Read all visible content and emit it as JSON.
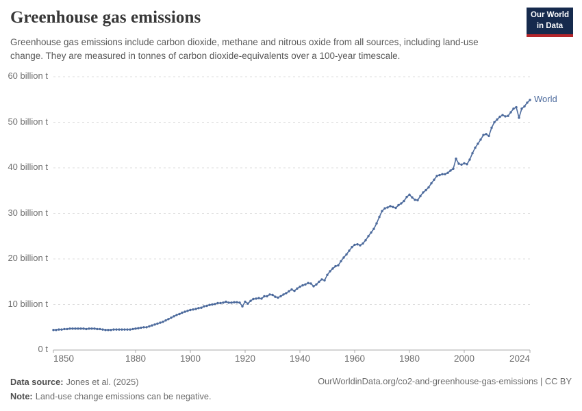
{
  "header": {
    "title": "Greenhouse gas emissions",
    "subtitle": "Greenhouse gas emissions include carbon dioxide, methane and nitrous oxide from all sources, including land-use change. They are measured in tonnes of carbon dioxide-equivalents over a 100-year timescale.",
    "logo_line1": "Our World",
    "logo_line2": "in Data",
    "logo_bg_color": "#162a4d",
    "logo_accent_color": "#b5252a"
  },
  "chart_data": {
    "type": "line",
    "title": "Greenhouse gas emissions",
    "series_label": "World",
    "unit": "billion t",
    "line_color": "#4C6A9C",
    "grid": true,
    "legend_position": "end-of-line",
    "xlim": [
      1850,
      2024
    ],
    "ylim": [
      0,
      60
    ],
    "x_ticks": [
      1850,
      1880,
      1900,
      1920,
      1940,
      1960,
      1980,
      2000,
      2024
    ],
    "y_ticks": [
      {
        "value": 0,
        "label": "0 t"
      },
      {
        "value": 10,
        "label": "10 billion t"
      },
      {
        "value": 20,
        "label": "20 billion t"
      },
      {
        "value": 30,
        "label": "30 billion t"
      },
      {
        "value": 40,
        "label": "40 billion t"
      },
      {
        "value": 50,
        "label": "50 billion t"
      },
      {
        "value": 60,
        "label": "60 billion t"
      }
    ],
    "x": [
      1850,
      1851,
      1852,
      1853,
      1854,
      1855,
      1856,
      1857,
      1858,
      1859,
      1860,
      1861,
      1862,
      1863,
      1864,
      1865,
      1866,
      1867,
      1868,
      1869,
      1870,
      1871,
      1872,
      1873,
      1874,
      1875,
      1876,
      1877,
      1878,
      1879,
      1880,
      1881,
      1882,
      1883,
      1884,
      1885,
      1886,
      1887,
      1888,
      1889,
      1890,
      1891,
      1892,
      1893,
      1894,
      1895,
      1896,
      1897,
      1898,
      1899,
      1900,
      1901,
      1902,
      1903,
      1904,
      1905,
      1906,
      1907,
      1908,
      1909,
      1910,
      1911,
      1912,
      1913,
      1914,
      1915,
      1916,
      1917,
      1918,
      1919,
      1920,
      1921,
      1922,
      1923,
      1924,
      1925,
      1926,
      1927,
      1928,
      1929,
      1930,
      1931,
      1932,
      1933,
      1934,
      1935,
      1936,
      1937,
      1938,
      1939,
      1940,
      1941,
      1942,
      1943,
      1944,
      1945,
      1946,
      1947,
      1948,
      1949,
      1950,
      1951,
      1952,
      1953,
      1954,
      1955,
      1956,
      1957,
      1958,
      1959,
      1960,
      1961,
      1962,
      1963,
      1964,
      1965,
      1966,
      1967,
      1968,
      1969,
      1970,
      1971,
      1972,
      1973,
      1974,
      1975,
      1976,
      1977,
      1978,
      1979,
      1980,
      1981,
      1982,
      1983,
      1984,
      1985,
      1986,
      1987,
      1988,
      1989,
      1990,
      1991,
      1992,
      1993,
      1994,
      1995,
      1996,
      1997,
      1998,
      1999,
      2000,
      2001,
      2002,
      2003,
      2004,
      2005,
      2006,
      2007,
      2008,
      2009,
      2010,
      2011,
      2012,
      2013,
      2014,
      2015,
      2016,
      2017,
      2018,
      2019,
      2020,
      2021,
      2022,
      2023,
      2024
    ],
    "values": [
      4.4,
      4.4,
      4.5,
      4.5,
      4.6,
      4.6,
      4.7,
      4.7,
      4.7,
      4.7,
      4.7,
      4.7,
      4.6,
      4.7,
      4.7,
      4.7,
      4.6,
      4.6,
      4.5,
      4.4,
      4.4,
      4.4,
      4.5,
      4.5,
      4.5,
      4.5,
      4.5,
      4.5,
      4.5,
      4.6,
      4.7,
      4.8,
      4.9,
      5.0,
      5.0,
      5.2,
      5.4,
      5.6,
      5.8,
      6.0,
      6.2,
      6.5,
      6.8,
      7.1,
      7.4,
      7.7,
      7.9,
      8.2,
      8.4,
      8.6,
      8.8,
      8.9,
      9.0,
      9.2,
      9.3,
      9.6,
      9.7,
      9.9,
      10.0,
      10.1,
      10.3,
      10.3,
      10.4,
      10.6,
      10.4,
      10.4,
      10.5,
      10.5,
      10.4,
      9.6,
      10.6,
      10.2,
      10.8,
      11.2,
      11.3,
      11.4,
      11.3,
      11.8,
      11.8,
      12.2,
      12.1,
      11.7,
      11.5,
      11.8,
      12.2,
      12.5,
      12.9,
      13.3,
      13.0,
      13.5,
      13.9,
      14.2,
      14.4,
      14.7,
      14.6,
      14.0,
      14.4,
      15.0,
      15.5,
      15.3,
      16.5,
      17.3,
      17.9,
      18.4,
      18.6,
      19.5,
      20.3,
      21.0,
      21.8,
      22.6,
      23.1,
      23.2,
      23.0,
      23.4,
      24.1,
      25.0,
      25.8,
      26.6,
      27.8,
      29.2,
      30.5,
      31.1,
      31.3,
      31.6,
      31.4,
      31.2,
      31.8,
      32.2,
      32.7,
      33.6,
      34.1,
      33.5,
      33.0,
      32.9,
      33.8,
      34.6,
      35.1,
      35.7,
      36.6,
      37.4,
      38.2,
      38.4,
      38.6,
      38.6,
      38.9,
      39.4,
      39.8,
      42.0,
      40.9,
      40.7,
      41.0,
      40.8,
      41.8,
      43.2,
      44.4,
      45.3,
      46.2,
      47.2,
      47.4,
      47.0,
      48.8,
      50.0,
      50.6,
      51.2,
      51.6,
      51.3,
      51.4,
      52.2,
      53.0,
      53.3,
      51.0,
      53.0,
      53.5,
      54.3,
      54.9
    ]
  },
  "footer": {
    "datasource_label": "Data source:",
    "datasource_text": "Jones et al. (2025)",
    "note_label": "Note:",
    "note_text": "Land-use change emissions can be negative.",
    "citation": "OurWorldinData.org/co2-and-greenhouse-gas-emissions | CC BY"
  }
}
